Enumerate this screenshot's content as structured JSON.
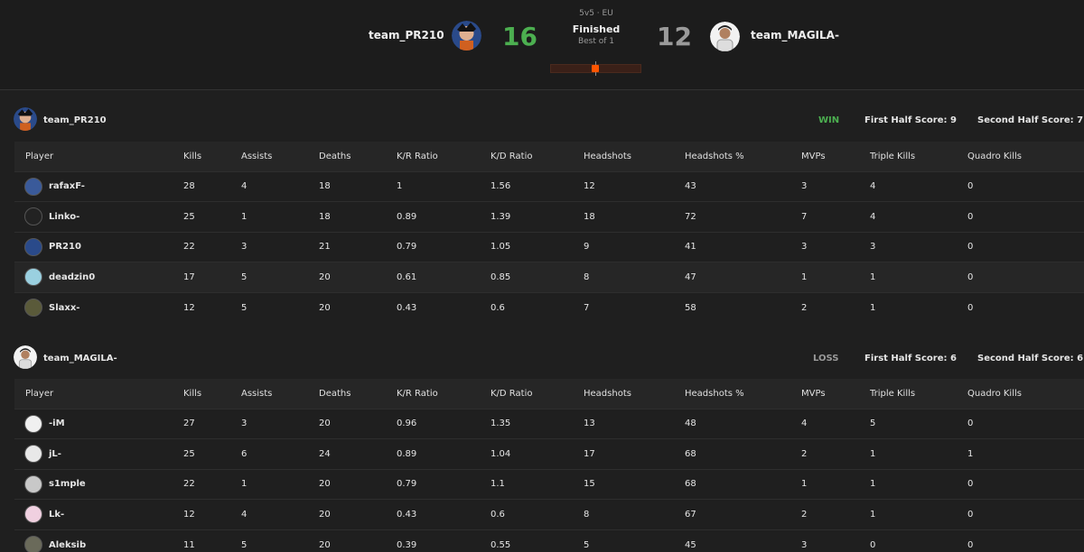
{
  "match": {
    "team1_name": "team_PR210",
    "team2_name": "team_MAGILA-",
    "team1_score": "16",
    "team2_score": "12",
    "mode": "5v5 · EU",
    "status": "Finished",
    "best_of": "Best of 1",
    "win_color": "#4caf50",
    "loss_color": "#9a9a9a",
    "accent_color": "#ff5500"
  },
  "columns": [
    "Player",
    "Kills",
    "Assists",
    "Deaths",
    "K/R Ratio",
    "K/D Ratio",
    "Headshots",
    "Headshots %",
    "MVPs",
    "Triple Kills",
    "Quadro Kills"
  ],
  "team1": {
    "name": "team_PR210",
    "result": "WIN",
    "first_half": "First Half Score: 9",
    "second_half": "Second Half Score: 7",
    "players": [
      {
        "name": "rafaxF-",
        "kills": "28",
        "assists": "4",
        "deaths": "18",
        "kr": "1",
        "kd": "1.56",
        "hs": "12",
        "hsp": "43",
        "mvps": "3",
        "triple": "4",
        "quadro": "0"
      },
      {
        "name": "Linko-",
        "kills": "25",
        "assists": "1",
        "deaths": "18",
        "kr": "0.89",
        "kd": "1.39",
        "hs": "18",
        "hsp": "72",
        "mvps": "7",
        "triple": "4",
        "quadro": "0"
      },
      {
        "name": "PR210",
        "kills": "22",
        "assists": "3",
        "deaths": "21",
        "kr": "0.79",
        "kd": "1.05",
        "hs": "9",
        "hsp": "41",
        "mvps": "3",
        "triple": "3",
        "quadro": "0"
      },
      {
        "name": "deadzin0",
        "kills": "17",
        "assists": "5",
        "deaths": "20",
        "kr": "0.61",
        "kd": "0.85",
        "hs": "8",
        "hsp": "47",
        "mvps": "1",
        "triple": "1",
        "quadro": "0"
      },
      {
        "name": "Slaxx-",
        "kills": "12",
        "assists": "5",
        "deaths": "20",
        "kr": "0.43",
        "kd": "0.6",
        "hs": "7",
        "hsp": "58",
        "mvps": "2",
        "triple": "1",
        "quadro": "0"
      }
    ]
  },
  "team2": {
    "name": "team_MAGILA-",
    "result": "LOSS",
    "first_half": "First Half Score: 6",
    "second_half": "Second Half Score: 6",
    "players": [
      {
        "name": "-iM",
        "kills": "27",
        "assists": "3",
        "deaths": "20",
        "kr": "0.96",
        "kd": "1.35",
        "hs": "13",
        "hsp": "48",
        "mvps": "4",
        "triple": "5",
        "quadro": "0"
      },
      {
        "name": "jL-",
        "kills": "25",
        "assists": "6",
        "deaths": "24",
        "kr": "0.89",
        "kd": "1.04",
        "hs": "17",
        "hsp": "68",
        "mvps": "2",
        "triple": "1",
        "quadro": "1"
      },
      {
        "name": "s1mple",
        "kills": "22",
        "assists": "1",
        "deaths": "20",
        "kr": "0.79",
        "kd": "1.1",
        "hs": "15",
        "hsp": "68",
        "mvps": "1",
        "triple": "1",
        "quadro": "0"
      },
      {
        "name": "Lk-",
        "kills": "12",
        "assists": "4",
        "deaths": "20",
        "kr": "0.43",
        "kd": "0.6",
        "hs": "8",
        "hsp": "67",
        "mvps": "2",
        "triple": "1",
        "quadro": "0"
      },
      {
        "name": "Aleksib",
        "kills": "11",
        "assists": "5",
        "deaths": "20",
        "kr": "0.39",
        "kd": "0.55",
        "hs": "5",
        "hsp": "45",
        "mvps": "3",
        "triple": "0",
        "quadro": "0"
      }
    ]
  },
  "match_progress": 0.5
}
